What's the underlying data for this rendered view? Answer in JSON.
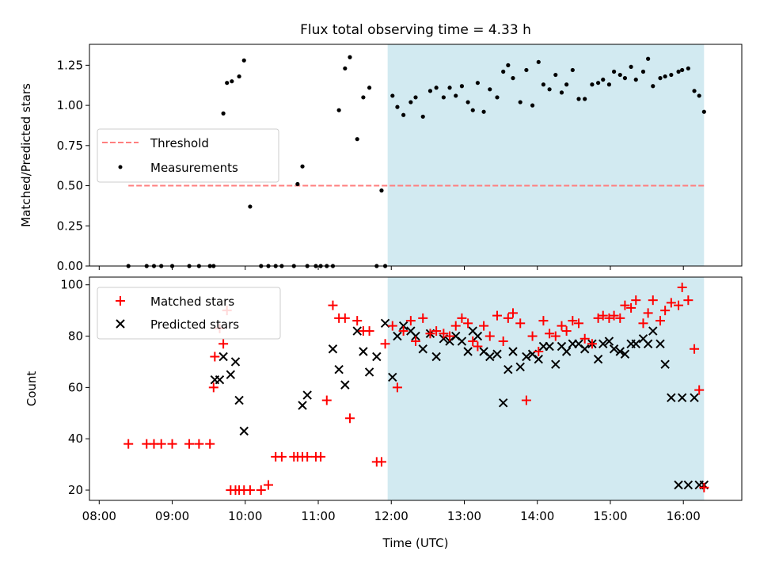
{
  "title": "Flux total observing time = 4.33 h",
  "colors": {
    "shade": "#add8e6",
    "threshold": "#ff7f7f",
    "measurements": "#000000",
    "matched": "#ff0000",
    "predicted": "#000000"
  },
  "chart_data": [
    {
      "type": "scatter",
      "ylabel": "Matched/Predicted stars",
      "ylim": [
        0,
        1.38
      ],
      "yticks": [
        "0.00",
        "0.25",
        "0.50",
        "0.75",
        "1.00",
        "1.25"
      ],
      "shaded_region": [
        "11:57",
        "16:17"
      ],
      "legend": {
        "placement": "center-left",
        "entries": [
          "Threshold",
          "Measurements"
        ]
      },
      "series": [
        {
          "name": "Threshold",
          "kind": "line",
          "x": [
            "08:24",
            "16:17"
          ],
          "y": [
            0.5,
            0.5
          ]
        },
        {
          "name": "Measurements",
          "kind": "scatter",
          "x": [
            "08:24",
            "08:39",
            "08:45",
            "08:51",
            "09:00",
            "09:14",
            "09:22",
            "09:31",
            "09:34",
            "09:42",
            "09:45",
            "09:49",
            "09:55",
            "09:59",
            "10:04",
            "10:13",
            "10:19",
            "10:25",
            "10:30",
            "10:40",
            "10:43",
            "10:47",
            "10:51",
            "10:58",
            "11:02",
            "11:07",
            "11:12",
            "11:17",
            "11:22",
            "11:26",
            "11:32",
            "11:37",
            "11:42",
            "11:48",
            "11:52",
            "11:55",
            "12:01",
            "12:05",
            "12:10",
            "12:16",
            "12:20",
            "12:26",
            "12:32",
            "12:37",
            "12:43",
            "12:48",
            "12:53",
            "12:58",
            "13:03",
            "13:07",
            "13:11",
            "13:16",
            "13:21",
            "13:27",
            "13:32",
            "13:36",
            "13:40",
            "13:46",
            "13:51",
            "13:56",
            "14:01",
            "14:05",
            "14:10",
            "14:15",
            "14:20",
            "14:24",
            "14:29",
            "14:34",
            "14:39",
            "14:45",
            "14:50",
            "14:54",
            "14:59",
            "15:03",
            "15:08",
            "15:12",
            "15:17",
            "15:21",
            "15:27",
            "15:31",
            "15:35",
            "15:41",
            "15:45",
            "15:50",
            "15:56",
            "15:59",
            "16:04",
            "16:09",
            "16:13",
            "16:17"
          ],
          "y": [
            0,
            0,
            0,
            0,
            0,
            0,
            0,
            0,
            0,
            0.95,
            1.14,
            1.15,
            1.18,
            1.28,
            0.37,
            0,
            0,
            0,
            0,
            0,
            0.51,
            0.62,
            0,
            0,
            0,
            0,
            0,
            0.97,
            1.23,
            1.3,
            0.79,
            1.05,
            1.11,
            0,
            0.47,
            0,
            1.06,
            0.99,
            0.94,
            1.02,
            1.05,
            0.93,
            1.09,
            1.11,
            1.05,
            1.11,
            1.06,
            1.12,
            1.02,
            0.97,
            1.14,
            0.96,
            1.1,
            1.05,
            1.21,
            1.25,
            1.17,
            1.02,
            1.22,
            1.0,
            1.27,
            1.13,
            1.1,
            1.19,
            1.08,
            1.13,
            1.22,
            1.04,
            1.04,
            1.13,
            1.14,
            1.16,
            1.13,
            1.21,
            1.19,
            1.17,
            1.24,
            1.16,
            1.21,
            1.29,
            1.12,
            1.17,
            1.18,
            1.19,
            1.21,
            1.22,
            1.23,
            1.09,
            1.06,
            0.96
          ]
        }
      ]
    },
    {
      "type": "scatter",
      "xlabel": "Time (UTC)",
      "ylabel": "Count",
      "ylim": [
        16,
        103
      ],
      "yticks": [
        "20",
        "40",
        "60",
        "80",
        "100"
      ],
      "xticks": [
        "08:00",
        "09:00",
        "10:00",
        "11:00",
        "12:00",
        "13:00",
        "14:00",
        "15:00",
        "16:00"
      ],
      "shaded_region": [
        "11:57",
        "16:17"
      ],
      "legend": {
        "placement": "top-left",
        "entries": [
          "Matched stars",
          "Predicted stars"
        ]
      },
      "series": [
        {
          "name": "Matched stars",
          "kind": "scatter",
          "x": [
            "08:24",
            "08:39",
            "08:45",
            "08:51",
            "09:00",
            "09:14",
            "09:22",
            "09:31",
            "09:34",
            "09:35",
            "09:39",
            "09:42",
            "09:45",
            "09:48",
            "09:52",
            "09:55",
            "09:59",
            "10:04",
            "10:13",
            "10:19",
            "10:25",
            "10:30",
            "10:40",
            "10:43",
            "10:47",
            "10:51",
            "10:58",
            "11:02",
            "11:07",
            "11:12",
            "11:17",
            "11:22",
            "11:26",
            "11:32",
            "11:37",
            "11:42",
            "11:48",
            "11:52",
            "11:55",
            "12:01",
            "12:05",
            "12:10",
            "12:16",
            "12:20",
            "12:26",
            "12:32",
            "12:37",
            "12:43",
            "12:48",
            "12:53",
            "12:58",
            "13:03",
            "13:07",
            "13:11",
            "13:16",
            "13:21",
            "13:27",
            "13:32",
            "13:36",
            "13:40",
            "13:46",
            "13:51",
            "13:56",
            "14:01",
            "14:05",
            "14:10",
            "14:15",
            "14:20",
            "14:24",
            "14:29",
            "14:34",
            "14:39",
            "14:45",
            "14:50",
            "14:54",
            "14:59",
            "15:03",
            "15:08",
            "15:12",
            "15:17",
            "15:21",
            "15:27",
            "15:31",
            "15:35",
            "15:41",
            "15:45",
            "15:50",
            "15:56",
            "15:59",
            "16:04",
            "16:09",
            "16:13",
            "16:17"
          ],
          "y": [
            38,
            38,
            38,
            38,
            38,
            38,
            38,
            38,
            60,
            72,
            83,
            77,
            90,
            20,
            20,
            20,
            20,
            20,
            20,
            22,
            33,
            33,
            33,
            33,
            33,
            33,
            33,
            33,
            55,
            92,
            87,
            87,
            48,
            86,
            82,
            82,
            31,
            31,
            77,
            84,
            60,
            82,
            86,
            78,
            87,
            81,
            82,
            81,
            80,
            84,
            87,
            85,
            78,
            76,
            84,
            80,
            88,
            78,
            87,
            89,
            85,
            55,
            80,
            74,
            86,
            81,
            80,
            84,
            82,
            86,
            85,
            79,
            77,
            87,
            88,
            87,
            88,
            87,
            92,
            91,
            94,
            85,
            89,
            94,
            86,
            90,
            93,
            92,
            99,
            94,
            75,
            59,
            21
          ]
        },
        {
          "name": "Predicted stars",
          "kind": "scatter",
          "x": [
            "09:35",
            "09:39",
            "09:42",
            "09:48",
            "09:52",
            "09:55",
            "09:59",
            "10:47",
            "10:51",
            "11:12",
            "11:17",
            "11:22",
            "11:32",
            "11:37",
            "11:42",
            "11:48",
            "11:55",
            "12:01",
            "12:05",
            "12:10",
            "12:16",
            "12:20",
            "12:26",
            "12:32",
            "12:37",
            "12:43",
            "12:48",
            "12:53",
            "12:58",
            "13:03",
            "13:07",
            "13:11",
            "13:16",
            "13:21",
            "13:27",
            "13:32",
            "13:36",
            "13:40",
            "13:46",
            "13:51",
            "13:56",
            "14:01",
            "14:05",
            "14:10",
            "14:15",
            "14:20",
            "14:24",
            "14:29",
            "14:34",
            "14:39",
            "14:45",
            "14:50",
            "14:54",
            "14:59",
            "15:03",
            "15:08",
            "15:12",
            "15:17",
            "15:21",
            "15:27",
            "15:31",
            "15:35",
            "15:41",
            "15:45",
            "15:50",
            "15:56",
            "15:59",
            "16:04",
            "16:09",
            "16:13",
            "16:17"
          ],
          "y": [
            63,
            63,
            72,
            65,
            70,
            55,
            43,
            53,
            57,
            75,
            67,
            61,
            82,
            74,
            66,
            72,
            85,
            64,
            80,
            84,
            82,
            80,
            75,
            81,
            72,
            79,
            78,
            80,
            78,
            74,
            82,
            80,
            74,
            72,
            73,
            54,
            67,
            74,
            68,
            72,
            73,
            71,
            76,
            76,
            69,
            76,
            74,
            77,
            77,
            75,
            77,
            71,
            77,
            78,
            75,
            74,
            73,
            77,
            77,
            79,
            77,
            82,
            77,
            69,
            56,
            22,
            56,
            22,
            56,
            22,
            22
          ]
        }
      ]
    }
  ]
}
